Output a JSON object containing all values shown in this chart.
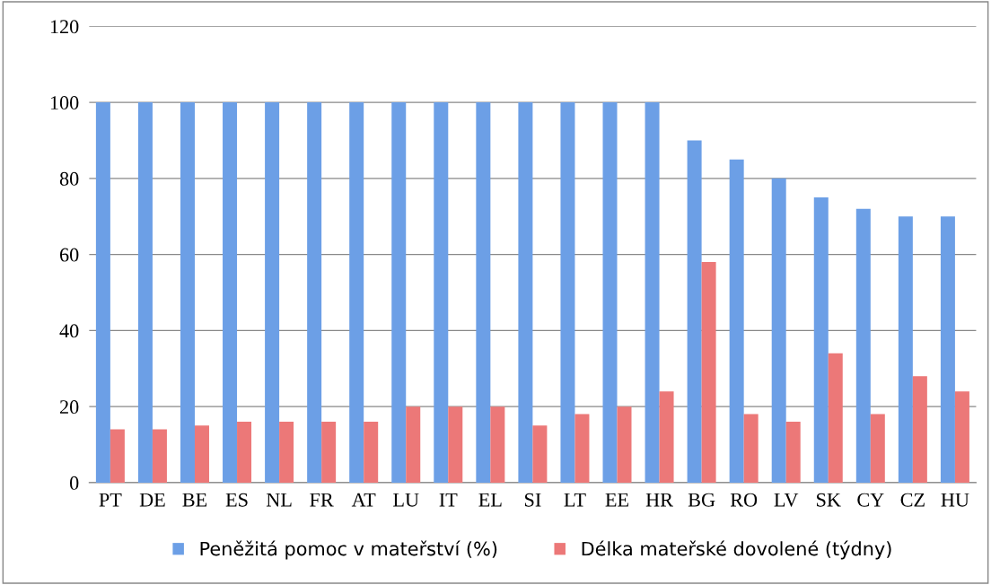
{
  "chart_data": {
    "type": "bar",
    "categories": [
      "PT",
      "DE",
      "BE",
      "ES",
      "NL",
      "FR",
      "AT",
      "LU",
      "IT",
      "EL",
      "SI",
      "LT",
      "EE",
      "HR",
      "BG",
      "RO",
      "LV",
      "SK",
      "CY",
      "CZ",
      "HU"
    ],
    "series": [
      {
        "name": "Peněžitá pomoc v mateřství (%)",
        "color": "#6c9fe6",
        "values": [
          100,
          100,
          100,
          100,
          100,
          100,
          100,
          100,
          100,
          100,
          100,
          100,
          100,
          100,
          90,
          85,
          80,
          75,
          72,
          70,
          70
        ]
      },
      {
        "name": "Délka mateřské dovolené (týdny)",
        "color": "#ec7878",
        "values": [
          14,
          14,
          15,
          16,
          16,
          16,
          16,
          20,
          20,
          20,
          15,
          18,
          20,
          24,
          58,
          18,
          16,
          34,
          18,
          28,
          24
        ]
      }
    ],
    "ylim": [
      0,
      120
    ],
    "yticks": [
      0,
      20,
      40,
      60,
      80,
      100,
      120
    ],
    "grid": "y",
    "legend": "bottom"
  }
}
